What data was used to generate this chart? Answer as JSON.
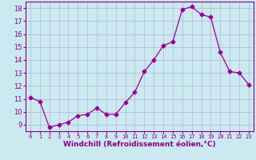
{
  "x": [
    0,
    1,
    2,
    3,
    4,
    5,
    6,
    7,
    8,
    9,
    10,
    11,
    12,
    13,
    14,
    15,
    16,
    17,
    18,
    19,
    20,
    21,
    22,
    23
  ],
  "y": [
    11.1,
    10.8,
    8.8,
    9.0,
    9.2,
    9.7,
    9.8,
    10.3,
    9.8,
    9.8,
    10.7,
    11.5,
    13.1,
    14.0,
    15.1,
    15.4,
    17.9,
    18.1,
    17.5,
    17.3,
    14.6,
    13.1,
    13.0,
    12.1
  ],
  "line_color": "#990099",
  "marker": "D",
  "markersize": 2.5,
  "linewidth": 0.9,
  "xlabel": "Windchill (Refroidissement éolien,°C)",
  "xlabel_fontsize": 6.5,
  "xlim": [
    -0.5,
    23.5
  ],
  "ylim": [
    8.5,
    18.5
  ],
  "yticks": [
    9,
    10,
    11,
    12,
    13,
    14,
    15,
    16,
    17,
    18
  ],
  "xticks": [
    0,
    1,
    2,
    3,
    4,
    5,
    6,
    7,
    8,
    9,
    10,
    11,
    12,
    13,
    14,
    15,
    16,
    17,
    18,
    19,
    20,
    21,
    22,
    23
  ],
  "background_color": "#cce8f0",
  "grid_color": "#aabbd0",
  "tick_color": "#880088",
  "ytick_fontsize": 6,
  "xtick_fontsize": 5,
  "axis_color": "#880088"
}
